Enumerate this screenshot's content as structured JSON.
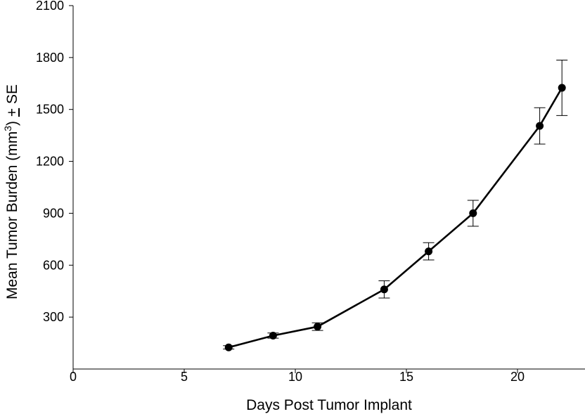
{
  "chart_data": {
    "type": "line",
    "title": "",
    "xlabel": "Days Post Tumor Implant",
    "ylabel": {
      "main": "Mean Tumor Burden (mm",
      "superscript": "3",
      "suffix": ") ",
      "pm_sign": "+",
      "se": " SE"
    },
    "xlim": [
      0,
      23
    ],
    "ylim": [
      0,
      2100
    ],
    "xticks": [
      0,
      5,
      10,
      15,
      20
    ],
    "yticks": [
      300,
      600,
      900,
      1200,
      1500,
      1800,
      2100
    ],
    "grid": false,
    "legend": "none",
    "series": [
      {
        "x": [
          7,
          9,
          11,
          14,
          16,
          18,
          21,
          22
        ],
        "y": [
          125,
          193,
          245,
          460,
          680,
          900,
          1405,
          1625
        ],
        "error": [
          10,
          15,
          22,
          50,
          50,
          75,
          105,
          160
        ]
      }
    ],
    "colors": {
      "line": "#000000",
      "marker": "#000000"
    }
  }
}
